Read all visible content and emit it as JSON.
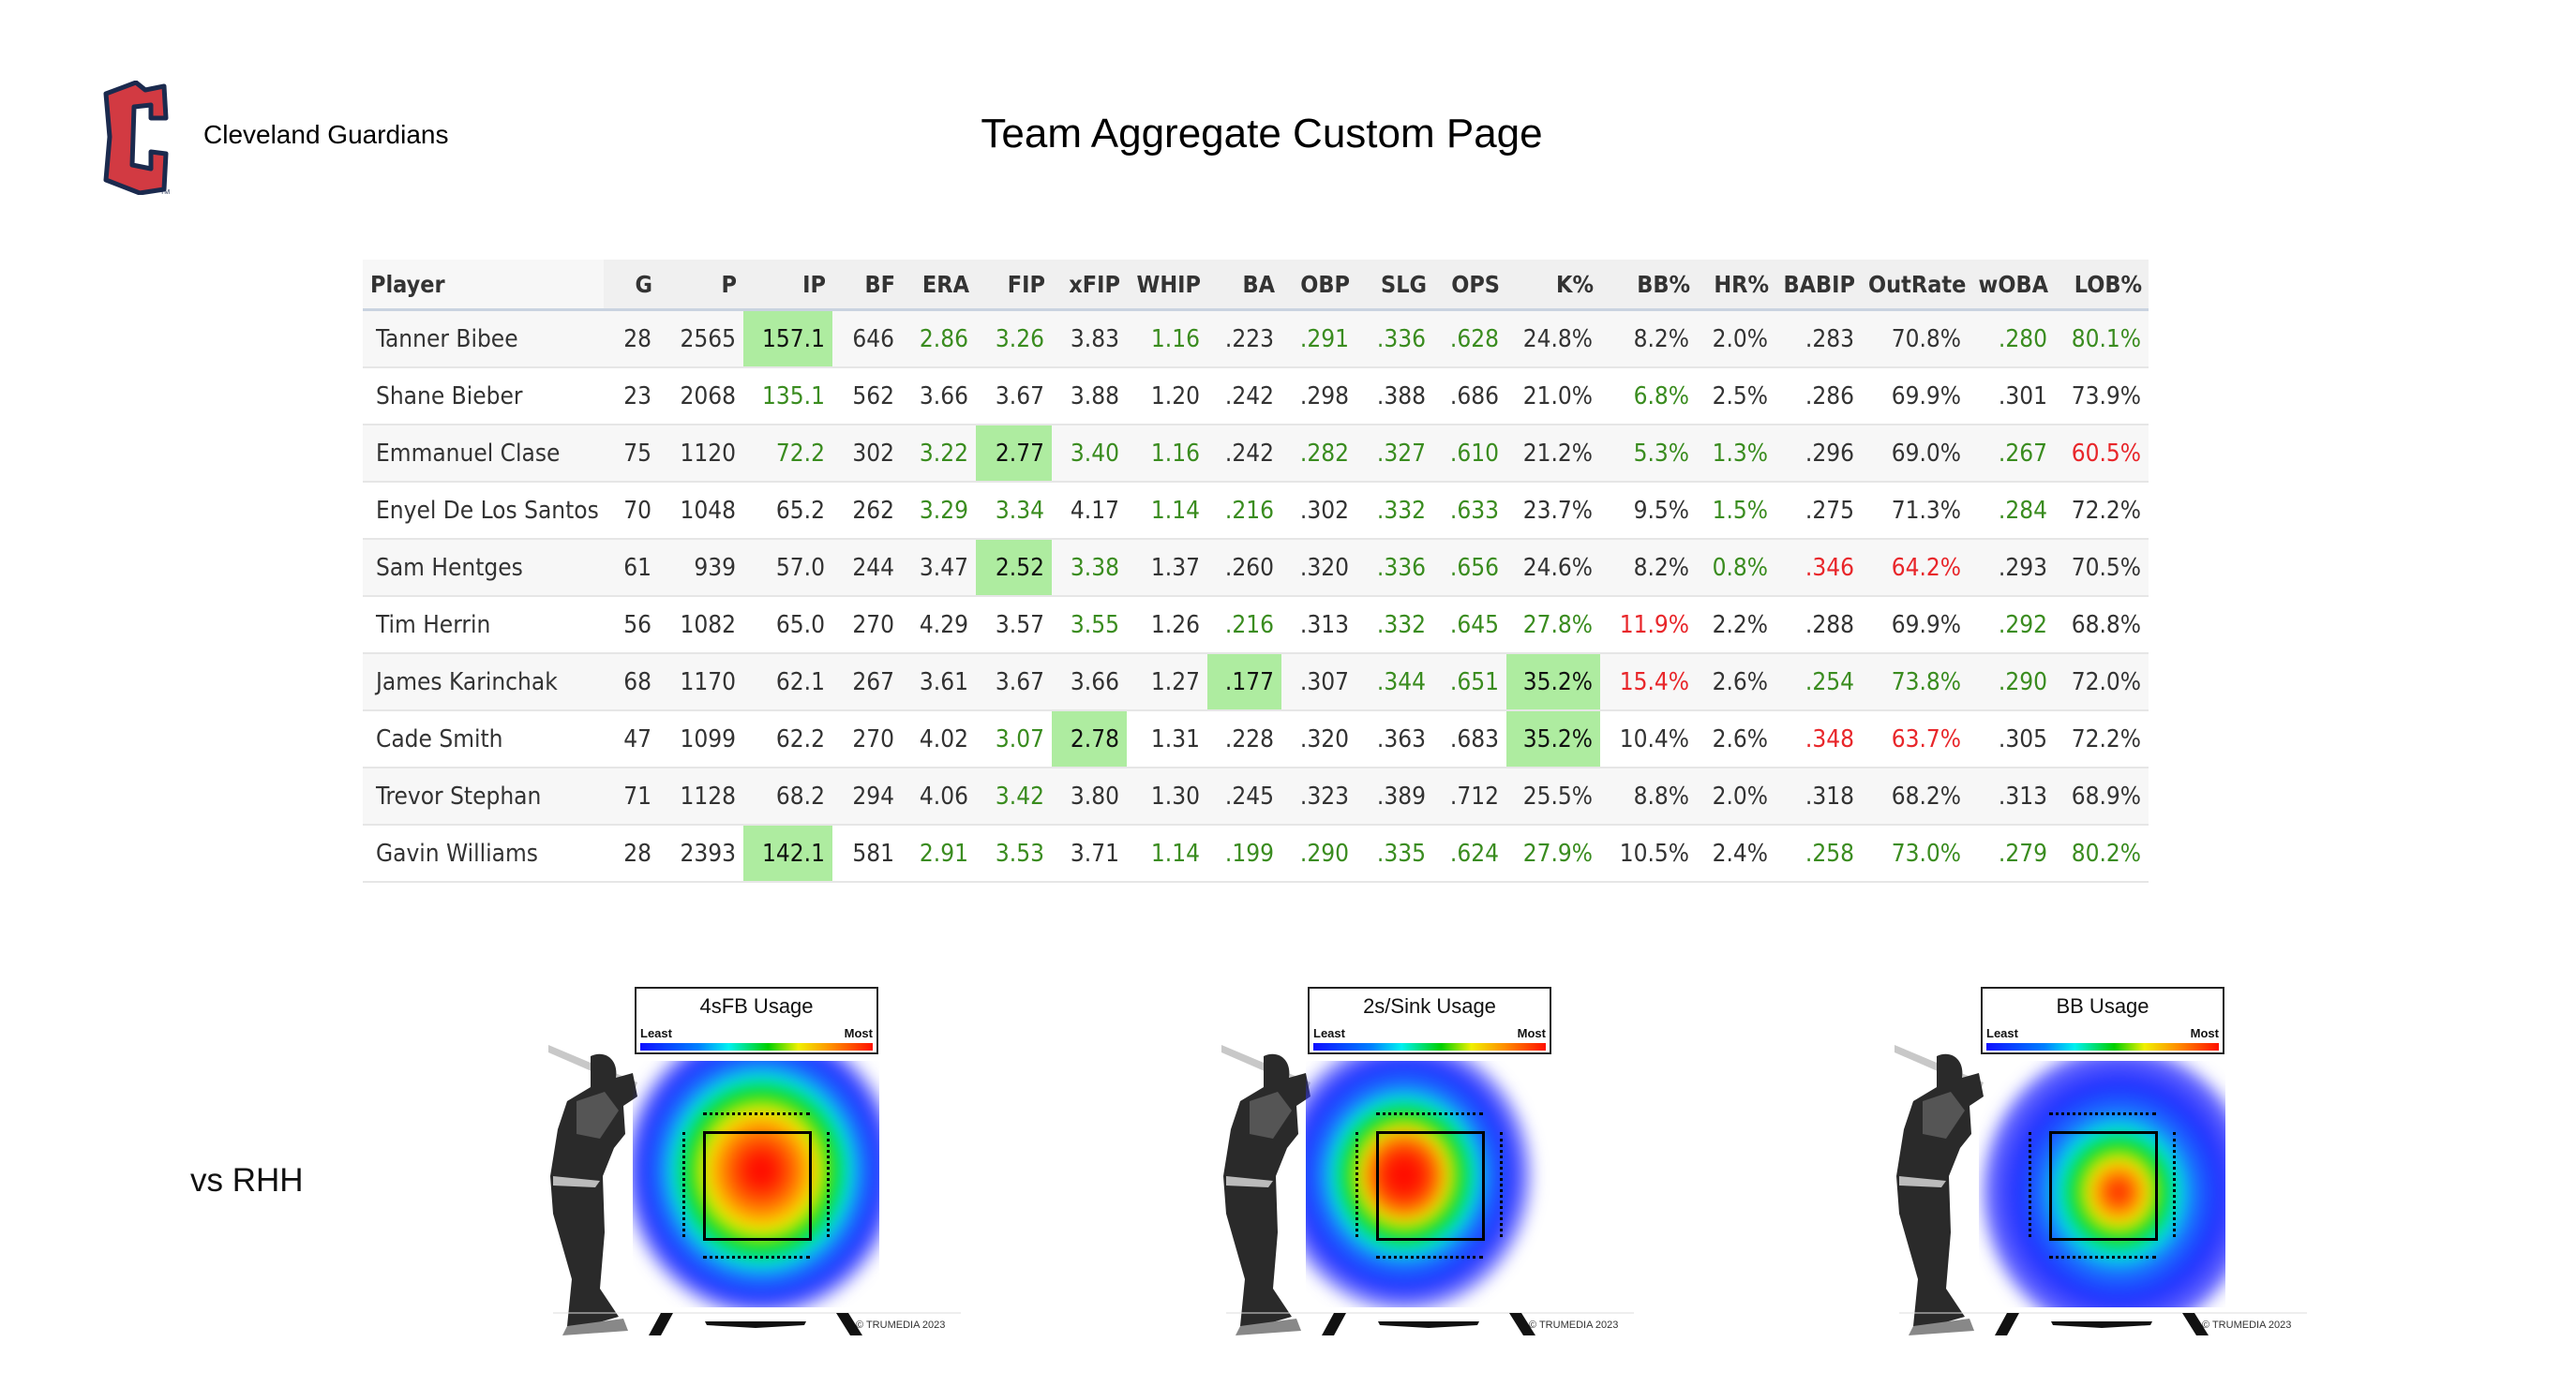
{
  "header": {
    "team_name": "Cleveland Guardians",
    "logo_text": "C",
    "page_title": "Team Aggregate Custom Page",
    "brand_colors": {
      "logo_red": "#d23a42",
      "logo_navy": "#1b2a4e"
    }
  },
  "table": {
    "columns": [
      "Player",
      "G",
      "P",
      "IP",
      "BF",
      "ERA",
      "FIP",
      "xFIP",
      "WHIP",
      "BA",
      "OBP",
      "SLG",
      "OPS",
      "K%",
      "BB%",
      "HR%",
      "BABIP",
      "OutRate",
      "wOBA",
      "LOB%"
    ],
    "style_legend": {
      "n": "normal",
      "g": "good (green text)",
      "r": "bad (red text)",
      "h": "best (green highlight)"
    },
    "colors": {
      "good": "#3a8c1f",
      "bad": "#e8262a",
      "highlight": "#aeeca0"
    },
    "rows": [
      {
        "player": "Tanner Bibee",
        "values": [
          "28",
          "2565",
          "157.1",
          "646",
          "2.86",
          "3.26",
          "3.83",
          "1.16",
          ".223",
          ".291",
          ".336",
          ".628",
          "24.8%",
          "8.2%",
          "2.0%",
          ".283",
          "70.8%",
          ".280",
          "80.1%"
        ],
        "styles": "nnhnggngngggnnnnngg"
      },
      {
        "player": "Shane Bieber",
        "values": [
          "23",
          "2068",
          "135.1",
          "562",
          "3.66",
          "3.67",
          "3.88",
          "1.20",
          ".242",
          ".298",
          ".388",
          ".686",
          "21.0%",
          "6.8%",
          "2.5%",
          ".286",
          "69.9%",
          ".301",
          "73.9%"
        ],
        "styles": "nngnnnnnnnnnngnnnnn"
      },
      {
        "player": "Emmanuel Clase",
        "values": [
          "75",
          "1120",
          "72.2",
          "302",
          "3.22",
          "2.77",
          "3.40",
          "1.16",
          ".242",
          ".282",
          ".327",
          ".610",
          "21.2%",
          "5.3%",
          "1.3%",
          ".296",
          "69.0%",
          ".267",
          "60.5%"
        ],
        "styles": "nngnghggngggnggnngr"
      },
      {
        "player": "Enyel De Los Santos",
        "values": [
          "70",
          "1048",
          "65.2",
          "262",
          "3.29",
          "3.34",
          "4.17",
          "1.14",
          ".216",
          ".302",
          ".332",
          ".633",
          "23.7%",
          "9.5%",
          "1.5%",
          ".275",
          "71.3%",
          ".284",
          "72.2%"
        ],
        "styles": "nnnnggnggnggnngnngn"
      },
      {
        "player": "Sam Hentges",
        "values": [
          "61",
          "939",
          "57.0",
          "244",
          "3.47",
          "2.52",
          "3.38",
          "1.37",
          ".260",
          ".320",
          ".336",
          ".656",
          "24.6%",
          "8.2%",
          "0.8%",
          ".346",
          "64.2%",
          ".293",
          "70.5%"
        ],
        "styles": "nnnnnhgnnnggnngrrnn"
      },
      {
        "player": "Tim Herrin",
        "values": [
          "56",
          "1082",
          "65.0",
          "270",
          "4.29",
          "3.57",
          "3.55",
          "1.26",
          ".216",
          ".313",
          ".332",
          ".645",
          "27.8%",
          "11.9%",
          "2.2%",
          ".288",
          "69.9%",
          ".292",
          "68.8%"
        ],
        "styles": "nnnnnngngngggrnnngn"
      },
      {
        "player": "James Karinchak",
        "values": [
          "68",
          "1170",
          "62.1",
          "267",
          "3.61",
          "3.67",
          "3.66",
          "1.27",
          ".177",
          ".307",
          ".344",
          ".651",
          "35.2%",
          "15.4%",
          "2.6%",
          ".254",
          "73.8%",
          ".290",
          "72.0%"
        ],
        "styles": "nnnnnnnnhngghrngggn"
      },
      {
        "player": "Cade Smith",
        "values": [
          "47",
          "1099",
          "62.2",
          "270",
          "4.02",
          "3.07",
          "2.78",
          "1.31",
          ".228",
          ".320",
          ".363",
          ".683",
          "35.2%",
          "10.4%",
          "2.6%",
          ".348",
          "63.7%",
          ".305",
          "72.2%"
        ],
        "styles": "nnnnnghnnnnnhnnrrnn"
      },
      {
        "player": "Trevor Stephan",
        "values": [
          "71",
          "1128",
          "68.2",
          "294",
          "4.06",
          "3.42",
          "3.80",
          "1.30",
          ".245",
          ".323",
          ".389",
          ".712",
          "25.5%",
          "8.8%",
          "2.0%",
          ".318",
          "68.2%",
          ".313",
          "68.9%"
        ],
        "styles": "nnnnngnnnnnnnnnnnnn"
      },
      {
        "player": "Gavin Williams",
        "values": [
          "28",
          "2393",
          "142.1",
          "581",
          "2.91",
          "3.53",
          "3.71",
          "1.14",
          ".199",
          ".290",
          ".335",
          ".624",
          "27.9%",
          "10.5%",
          "2.4%",
          ".258",
          "73.0%",
          ".279",
          "80.2%"
        ],
        "styles": "nnhnggnggggggnngggg"
      }
    ]
  },
  "heatmaps": {
    "row_label": "vs RHH",
    "scale_least": "Least",
    "scale_most": "Most",
    "copyright": "© TRUMEDIA 2023",
    "panels": [
      {
        "title": "4sFB Usage"
      },
      {
        "title": "2s/Sink Usage"
      },
      {
        "title": "BB Usage"
      }
    ]
  }
}
